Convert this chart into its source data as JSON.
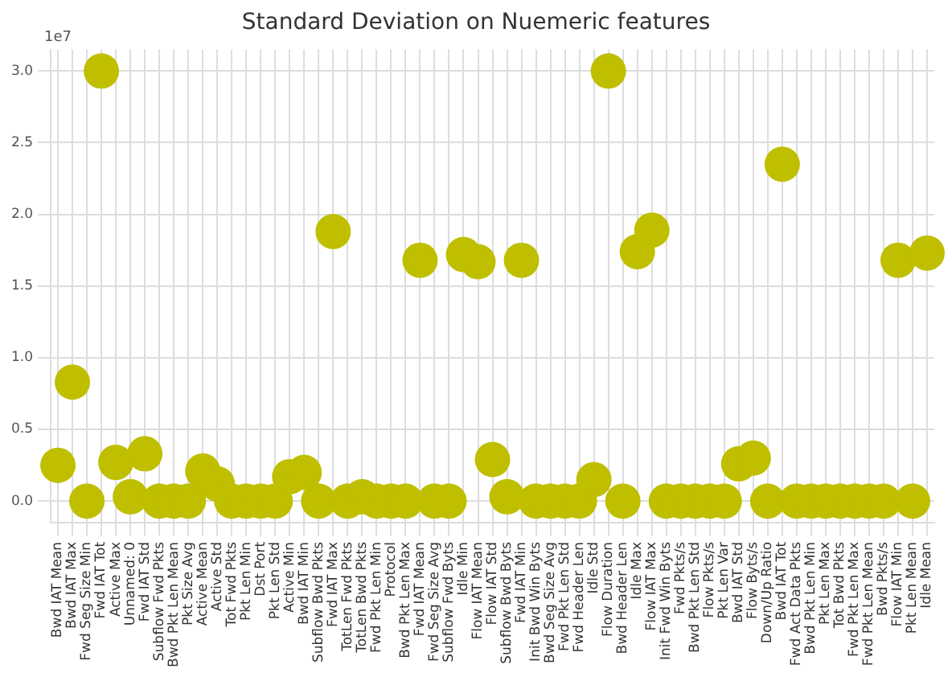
{
  "chart_data": {
    "type": "scatter",
    "title": "Standard Deviation on Nuemeric features",
    "annotations": [
      "1e7"
    ],
    "categories": [
      "Bwd IAT Mean",
      "Bwd IAT Max",
      "Fwd Seg Size Min",
      "Fwd IAT Tot",
      "Active Max",
      "Unnamed: 0",
      "Fwd IAT Std",
      "Subflow Fwd Pkts",
      "Bwd Pkt Len Mean",
      "Pkt Size Avg",
      "Active Mean",
      "Active Std",
      "Tot Fwd Pkts",
      "Pkt Len Min",
      "Dst Port",
      "Pkt Len Std",
      "Active Min",
      "Bwd IAT Min",
      "Subflow Bwd Pkts",
      "Fwd IAT Max",
      "TotLen Fwd Pkts",
      "TotLen Bwd Pkts",
      "Fwd Pkt Len Min",
      "Protocol",
      "Bwd Pkt Len Max",
      "Fwd IAT Mean",
      "Fwd Seg Size Avg",
      "Subflow Fwd Byts",
      "Idle Min",
      "Flow IAT Mean",
      "Flow IAT Std",
      "Subflow Bwd Byts",
      "Fwd IAT Min",
      "Init Bwd Win Byts",
      "Bwd Seg Size Avg",
      "Fwd Pkt Len Std",
      "Fwd Header Len",
      "Idle Std",
      "Flow Duration",
      "Bwd Header Len",
      "Idle Max",
      "Flow IAT Max",
      "Init Fwd Win Byts",
      "Fwd Pkts/s",
      "Bwd Pkt Len Std",
      "Flow Pkts/s",
      "Pkt Len Var",
      "Bwd IAT Std",
      "Flow Byts/s",
      "Down/Up Ratio",
      "Bwd IAT Tot",
      "Fwd Act Data Pkts",
      "Bwd Pkt Len Min",
      "Pkt Len Max",
      "Tot Bwd Pkts",
      "Fwd Pkt Len Max",
      "Fwd Pkt Len Mean",
      "Bwd Pkts/s",
      "Flow IAT Min",
      "Pkt Len Mean",
      "Idle Mean"
    ],
    "values": [
      0.25,
      0.83,
      0,
      3.0,
      0.27,
      0.03,
      0.33,
      0,
      0,
      0,
      0.21,
      0.12,
      0,
      0,
      0,
      0,
      0.17,
      0.2,
      0,
      1.88,
      0,
      0.03,
      0,
      0,
      0,
      1.68,
      0,
      0,
      1.72,
      1.67,
      0.29,
      0.03,
      1.68,
      0,
      0,
      0,
      0,
      0.15,
      3.0,
      0,
      1.74,
      1.89,
      0,
      0,
      0,
      0,
      0,
      0.26,
      0.3,
      0,
      2.35,
      0,
      0,
      0,
      0,
      0,
      0,
      0,
      1.68,
      0,
      1.73
    ],
    "color": "#bfbf00",
    "marker": "circle",
    "grid": true,
    "legend": false,
    "ylim": [
      -0.15,
      3.15
    ],
    "yticks": [
      {
        "value": 0,
        "label": "0.0"
      },
      {
        "value": 0.5,
        "label": "0.5"
      },
      {
        "value": 1,
        "label": "1.0"
      },
      {
        "value": 1.5,
        "label": "1.5"
      },
      {
        "value": 2,
        "label": "2.0"
      },
      {
        "value": 2.5,
        "label": "2.5"
      },
      {
        "value": 3,
        "label": "3.0"
      }
    ]
  }
}
